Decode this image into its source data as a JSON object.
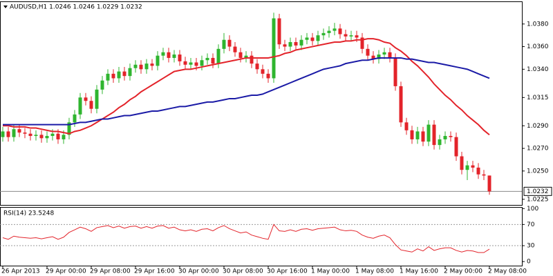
{
  "chart_data": [
    {
      "type": "candlestick",
      "title": "AUDUSD,H1  1.0246 1.0246 1.0229 1.0232",
      "categories": [
        "26 Apr 2013",
        null,
        null,
        null,
        null,
        null,
        null,
        null,
        "29 Apr 00:00",
        null,
        null,
        null,
        null,
        null,
        null,
        null,
        "29 Apr 08:00",
        null,
        null,
        null,
        null,
        null,
        null,
        null,
        "29 Apr 16:00",
        null,
        null,
        null,
        null,
        null,
        null,
        null,
        "30 Apr 00:00",
        null,
        null,
        null,
        null,
        null,
        null,
        null,
        "30 Apr 08:00",
        null,
        null,
        null,
        null,
        null,
        null,
        null,
        "30 Apr 16:00",
        null,
        null,
        null,
        null,
        null,
        null,
        null,
        "1 May 00:00",
        null,
        null,
        null,
        null,
        null,
        null,
        null,
        "1 May 08:00",
        null,
        null,
        null,
        null,
        null,
        null,
        null,
        "1 May 16:00",
        null,
        null,
        null,
        null,
        null,
        null,
        null,
        "2 May 00:00",
        null,
        null,
        null,
        null,
        null,
        null,
        null,
        "2 May 08:00"
      ],
      "open": [
        1.028,
        1.0285,
        1.028,
        1.0287,
        1.0284,
        1.0283,
        1.0281,
        1.0282,
        1.0279,
        1.0281,
        1.0283,
        1.0278,
        1.0282,
        1.0293,
        1.03,
        1.0315,
        1.0312,
        1.0305,
        1.0322,
        1.033,
        1.0336,
        1.0332,
        1.0338,
        1.0334,
        1.0341,
        1.0344,
        1.034,
        1.0345,
        1.0343,
        1.0352,
        1.0355,
        1.035,
        1.0353,
        1.0347,
        1.0344,
        1.0346,
        1.0343,
        1.0348,
        1.035,
        1.0345,
        1.0358,
        1.0366,
        1.036,
        1.0355,
        1.035,
        1.0352,
        1.0345,
        1.034,
        1.0336,
        1.0332,
        1.0385,
        1.0362,
        1.036,
        1.0364,
        1.0361,
        1.0366,
        1.0368,
        1.0365,
        1.037,
        1.0372,
        1.0374,
        1.0376,
        1.0371,
        1.0369,
        1.037,
        1.0368,
        1.0358,
        1.0352,
        1.0349,
        1.0353,
        1.0355,
        1.035,
        1.0325,
        1.0293,
        1.0286,
        1.0278,
        1.0285,
        1.0276,
        1.0291,
        1.0273,
        1.0278,
        1.0281,
        1.028,
        1.0263,
        1.0251,
        1.0255,
        1.0253,
        1.0247,
        1.0246
      ],
      "high": [
        1.0289,
        1.0289,
        1.0291,
        1.0291,
        1.0288,
        1.0287,
        1.0286,
        1.0286,
        1.0285,
        1.0287,
        1.0287,
        1.0286,
        1.0297,
        1.0304,
        1.0319,
        1.0319,
        1.0316,
        1.0326,
        1.0334,
        1.034,
        1.034,
        1.0342,
        1.0342,
        1.0345,
        1.0348,
        1.0348,
        1.0349,
        1.0349,
        1.0356,
        1.0359,
        1.0359,
        1.0357,
        1.0357,
        1.0351,
        1.035,
        1.035,
        1.0352,
        1.0354,
        1.0354,
        1.0362,
        1.0372,
        1.037,
        1.0364,
        1.0359,
        1.0356,
        1.0356,
        1.0349,
        1.0344,
        1.034,
        1.039,
        1.0389,
        1.0366,
        1.0368,
        1.0368,
        1.037,
        1.0372,
        1.0372,
        1.0374,
        1.0376,
        1.0378,
        1.0381,
        1.038,
        1.0375,
        1.0374,
        1.0374,
        1.0372,
        1.0362,
        1.0356,
        1.0357,
        1.0359,
        1.0359,
        1.0354,
        1.0329,
        1.0297,
        1.029,
        1.0289,
        1.0289,
        1.0295,
        1.0295,
        1.0282,
        1.0285,
        1.0285,
        1.0284,
        1.0267,
        1.0259,
        1.0259,
        1.0257,
        1.0251,
        1.0246
      ],
      "low": [
        1.0276,
        1.0276,
        1.0276,
        1.028,
        1.0279,
        1.0277,
        1.0277,
        1.0275,
        1.0275,
        1.0277,
        1.0274,
        1.0274,
        1.0278,
        1.0289,
        1.0296,
        1.0308,
        1.0301,
        1.0301,
        1.0318,
        1.0326,
        1.0328,
        1.0328,
        1.033,
        1.033,
        1.0337,
        1.0336,
        1.0336,
        1.0339,
        1.0339,
        1.0348,
        1.0346,
        1.0346,
        1.0343,
        1.034,
        1.034,
        1.0339,
        1.0339,
        1.0344,
        1.0341,
        1.0341,
        1.0354,
        1.0356,
        1.0351,
        1.0346,
        1.0346,
        1.0341,
        1.0336,
        1.0332,
        1.0328,
        1.0328,
        1.0358,
        1.0356,
        1.0356,
        1.0357,
        1.0357,
        1.0362,
        1.0361,
        1.0361,
        1.0366,
        1.0368,
        1.037,
        1.0367,
        1.0365,
        1.0365,
        1.0364,
        1.0354,
        1.0348,
        1.0345,
        1.0345,
        1.0349,
        1.0346,
        1.0321,
        1.0289,
        1.0282,
        1.0274,
        1.0274,
        1.0272,
        1.0272,
        1.0269,
        1.0269,
        1.0274,
        1.0276,
        1.0259,
        1.0247,
        1.0242,
        1.0249,
        1.0243,
        1.0242,
        1.0229
      ],
      "close": [
        1.0285,
        1.028,
        1.0287,
        1.0284,
        1.0283,
        1.0281,
        1.0282,
        1.0279,
        1.0281,
        1.0283,
        1.0278,
        1.0282,
        1.0293,
        1.03,
        1.0315,
        1.0312,
        1.0305,
        1.0322,
        1.033,
        1.0336,
        1.0332,
        1.0338,
        1.0334,
        1.0341,
        1.0344,
        1.034,
        1.0345,
        1.0343,
        1.0352,
        1.0355,
        1.035,
        1.0353,
        1.0347,
        1.0344,
        1.0346,
        1.0343,
        1.0348,
        1.035,
        1.0345,
        1.0358,
        1.0366,
        1.036,
        1.0355,
        1.035,
        1.0352,
        1.0345,
        1.034,
        1.0336,
        1.0332,
        1.0385,
        1.0362,
        1.036,
        1.0364,
        1.0361,
        1.0366,
        1.0368,
        1.0365,
        1.037,
        1.0372,
        1.0374,
        1.0376,
        1.0371,
        1.0369,
        1.037,
        1.0368,
        1.0358,
        1.0352,
        1.0349,
        1.0353,
        1.0355,
        1.035,
        1.0325,
        1.0293,
        1.0286,
        1.0278,
        1.0285,
        1.0276,
        1.0291,
        1.0273,
        1.0278,
        1.0281,
        1.028,
        1.0263,
        1.0251,
        1.0255,
        1.0253,
        1.0247,
        1.0246,
        1.0232
      ],
      "up_color": "#2fb52f",
      "down_color": "#e3232a",
      "overlays": [
        {
          "color": "#e3232a",
          "values": [
            1.029,
            1.029,
            1.0289,
            1.0289,
            1.0289,
            1.0288,
            1.0288,
            1.0287,
            1.0286,
            1.0285,
            1.0285,
            1.0284,
            1.0283,
            1.0285,
            1.0286,
            1.0288,
            1.029,
            1.0293,
            1.0296,
            1.0299,
            1.0302,
            1.0306,
            1.0309,
            1.0313,
            1.0316,
            1.032,
            1.0323,
            1.0326,
            1.0329,
            1.0332,
            1.0335,
            1.0338,
            1.0339,
            1.034,
            1.034,
            1.0341,
            1.0342,
            1.0343,
            1.0344,
            1.0345,
            1.0346,
            1.0347,
            1.0348,
            1.0349,
            1.035,
            1.035,
            1.035,
            1.035,
            1.035,
            1.0351,
            1.0352,
            1.0354,
            1.0355,
            1.0357,
            1.0358,
            1.0359,
            1.036,
            1.0361,
            1.0362,
            1.0363,
            1.0364,
            1.0364,
            1.0365,
            1.0365,
            1.0366,
            1.0366,
            1.0367,
            1.0367,
            1.0366,
            1.0364,
            1.0363,
            1.0359,
            1.0356,
            1.0352,
            1.0347,
            1.0343,
            1.0338,
            1.0333,
            1.0327,
            1.0322,
            1.0317,
            1.0313,
            1.0308,
            1.0304,
            1.0299,
            1.0295,
            1.0291,
            1.0286,
            1.0282
          ]
        },
        {
          "color": "#1a1aa6",
          "values": [
            1.0291,
            1.0291,
            1.0291,
            1.0291,
            1.0291,
            1.0291,
            1.0291,
            1.0291,
            1.0291,
            1.0291,
            1.0291,
            1.0291,
            1.0291,
            1.0292,
            1.0293,
            1.0293,
            1.0294,
            1.0295,
            1.0296,
            1.0296,
            1.0297,
            1.0298,
            1.0299,
            1.0299,
            1.03,
            1.0301,
            1.0302,
            1.0303,
            1.0303,
            1.0304,
            1.0305,
            1.0306,
            1.0307,
            1.0307,
            1.0308,
            1.0309,
            1.031,
            1.0311,
            1.0311,
            1.0312,
            1.0313,
            1.0314,
            1.0314,
            1.0315,
            1.0316,
            1.0317,
            1.0317,
            1.0318,
            1.032,
            1.0322,
            1.0324,
            1.0326,
            1.0328,
            1.033,
            1.0332,
            1.0334,
            1.0336,
            1.0338,
            1.034,
            1.0341,
            1.0342,
            1.0343,
            1.0345,
            1.0346,
            1.0347,
            1.0348,
            1.0348,
            1.0349,
            1.035,
            1.035,
            1.035,
            1.035,
            1.035,
            1.0349,
            1.0349,
            1.0348,
            1.0347,
            1.0346,
            1.0346,
            1.0345,
            1.0344,
            1.0343,
            1.0342,
            1.0341,
            1.034,
            1.0338,
            1.0336,
            1.0334,
            1.0332
          ]
        }
      ],
      "last_price": {
        "value": 1.0232,
        "label": "1.0232"
      },
      "ylim": [
        1.022,
        1.04
      ],
      "yticks": [
        {
          "value": 1.0225,
          "label": "1.0225"
        },
        {
          "value": 1.025,
          "label": "1.0250"
        },
        {
          "value": 1.027,
          "label": "1.0270"
        },
        {
          "value": 1.029,
          "label": "1.0290"
        },
        {
          "value": 1.0315,
          "label": "1.0315"
        },
        {
          "value": 1.034,
          "label": "1.0340"
        },
        {
          "value": 1.036,
          "label": "1.0360"
        },
        {
          "value": 1.038,
          "label": "1.0380"
        }
      ]
    },
    {
      "type": "line",
      "title": "RSI(14) 23.5248",
      "color": "#e3232a",
      "values": [
        45,
        42,
        48,
        46,
        45,
        44,
        45,
        43,
        45,
        47,
        42,
        46,
        55,
        60,
        65,
        62,
        57,
        64,
        66,
        68,
        64,
        67,
        63,
        66,
        67,
        63,
        66,
        63,
        67,
        68,
        63,
        65,
        60,
        58,
        60,
        57,
        61,
        62,
        58,
        64,
        68,
        62,
        58,
        54,
        56,
        50,
        47,
        44,
        42,
        70,
        58,
        57,
        60,
        57,
        61,
        62,
        59,
        62,
        63,
        64,
        65,
        60,
        58,
        59,
        57,
        50,
        46,
        44,
        48,
        50,
        45,
        32,
        22,
        20,
        18,
        24,
        20,
        28,
        21,
        24,
        26,
        26,
        21,
        18,
        21,
        20,
        17,
        17,
        23.5248
      ],
      "ylim": [
        -9,
        103
      ],
      "yticks": [
        0,
        30,
        70,
        100
      ],
      "levels": [
        30,
        70
      ]
    }
  ]
}
